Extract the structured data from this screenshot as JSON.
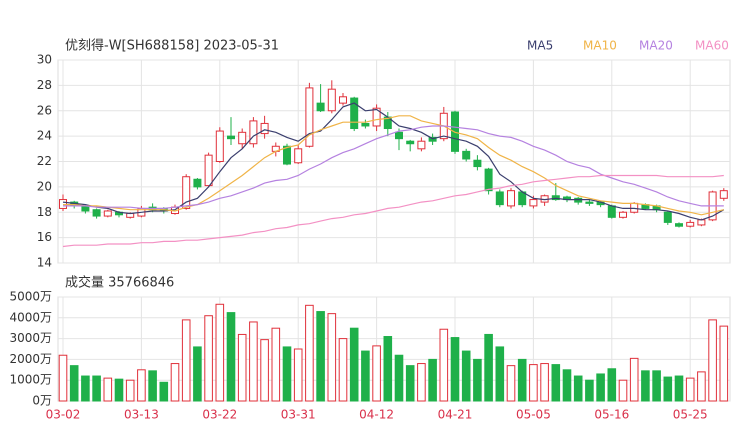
{
  "chart_data": [
    {
      "type": "candlestick",
      "title": "优刻得-W[SH688158] 2023-05-31",
      "categories": [
        "03-02",
        null,
        null,
        null,
        null,
        null,
        null,
        "03-13",
        null,
        null,
        null,
        null,
        null,
        null,
        "03-22",
        null,
        null,
        null,
        null,
        null,
        null,
        "03-31",
        null,
        null,
        null,
        null,
        null,
        null,
        "04-12",
        null,
        null,
        null,
        null,
        null,
        null,
        "04-21",
        null,
        null,
        null,
        null,
        null,
        null,
        "05-05",
        null,
        null,
        null,
        null,
        null,
        null,
        "05-16",
        null,
        null,
        null,
        null,
        null,
        null,
        "05-25",
        null,
        null,
        null
      ],
      "open": [
        18.3,
        18.8,
        18.5,
        18.2,
        17.7,
        18.0,
        17.6,
        17.7,
        18.4,
        18.3,
        17.9,
        18.3,
        20.6,
        20.1,
        22.0,
        24.0,
        23.4,
        23.4,
        24.2,
        22.8,
        23.2,
        21.9,
        23.2,
        26.6,
        26.0,
        26.6,
        27.0,
        25.0,
        24.8,
        25.5,
        24.3,
        23.6,
        23.0,
        23.9,
        23.8,
        25.9,
        22.8,
        22.1,
        21.4,
        19.6,
        18.5,
        19.6,
        18.5,
        18.8,
        19.3,
        19.2,
        19.1,
        18.8,
        18.8,
        18.5,
        17.6,
        18.0,
        18.6,
        18.5,
        18.0,
        17.1,
        16.9,
        17.0,
        17.4,
        19.1
      ],
      "high": [
        19.4,
        18.9,
        18.6,
        18.3,
        18.2,
        18.1,
        18.0,
        18.5,
        18.7,
        18.4,
        18.6,
        21.0,
        20.7,
        22.7,
        24.7,
        25.5,
        24.6,
        25.5,
        25.6,
        23.5,
        23.4,
        23.3,
        28.2,
        28.1,
        28.4,
        27.4,
        27.1,
        25.3,
        26.5,
        25.9,
        24.6,
        23.7,
        23.9,
        24.2,
        26.3,
        26.0,
        23.0,
        22.5,
        21.5,
        19.8,
        19.9,
        19.7,
        19.3,
        19.4,
        20.3,
        19.3,
        19.2,
        19.0,
        18.9,
        18.6,
        18.1,
        18.8,
        18.7,
        18.6,
        18.1,
        17.2,
        17.4,
        17.5,
        19.7,
        19.9
      ],
      "low": [
        18.1,
        18.3,
        17.9,
        17.5,
        17.6,
        17.6,
        17.5,
        17.6,
        18.0,
        17.9,
        17.8,
        18.2,
        19.8,
        20.0,
        21.9,
        23.3,
        23.0,
        23.1,
        23.8,
        22.4,
        21.7,
        21.8,
        23.1,
        25.9,
        25.8,
        26.4,
        24.4,
        24.6,
        24.4,
        24.0,
        22.9,
        22.8,
        22.8,
        23.3,
        23.6,
        22.6,
        22.0,
        21.3,
        19.4,
        18.4,
        18.3,
        18.4,
        18.3,
        18.5,
        18.9,
        18.8,
        18.6,
        18.5,
        18.4,
        17.5,
        17.5,
        17.9,
        18.2,
        18.0,
        17.0,
        16.8,
        16.8,
        16.9,
        17.3,
        18.9
      ],
      "close": [
        19.0,
        18.5,
        18.1,
        17.7,
        18.1,
        17.8,
        17.9,
        18.3,
        18.2,
        18.1,
        18.4,
        20.8,
        20.0,
        22.5,
        24.4,
        23.8,
        24.3,
        25.2,
        25.0,
        23.2,
        21.8,
        23.0,
        27.8,
        26.0,
        27.7,
        27.1,
        24.6,
        24.8,
        26.2,
        24.6,
        23.8,
        23.4,
        23.6,
        23.6,
        25.8,
        22.8,
        22.2,
        21.6,
        19.7,
        18.6,
        19.7,
        18.6,
        19.0,
        19.3,
        19.0,
        19.0,
        18.8,
        18.7,
        18.6,
        17.6,
        18.0,
        18.7,
        18.3,
        18.2,
        17.2,
        16.9,
        17.2,
        17.4,
        19.6,
        19.7
      ],
      "up_color": "#e0303a",
      "down_color": "#1fb04a",
      "series": [
        {
          "name": "MA5",
          "color": "#3b3f6e",
          "values": [
            18.8,
            18.7,
            18.6,
            18.4,
            18.3,
            18.0,
            17.9,
            18.0,
            18.1,
            18.1,
            18.2,
            18.8,
            19.1,
            20.0,
            21.2,
            22.3,
            23.0,
            24.0,
            24.5,
            24.3,
            23.9,
            23.6,
            24.2,
            24.4,
            25.3,
            26.3,
            26.6,
            26.0,
            26.1,
            25.5,
            24.8,
            24.6,
            24.3,
            23.8,
            24.0,
            23.8,
            23.6,
            23.2,
            22.4,
            21.0,
            20.4,
            19.6,
            19.1,
            19.0,
            19.1,
            19.0,
            19.0,
            19.0,
            18.8,
            18.5,
            18.3,
            18.3,
            18.2,
            18.2,
            18.1,
            17.9,
            17.6,
            17.4,
            17.7,
            18.2
          ]
        },
        {
          "name": "MA10",
          "color": "#f0b448",
          "values": [
            18.6,
            18.6,
            18.5,
            18.5,
            18.4,
            18.3,
            18.2,
            18.2,
            18.2,
            18.2,
            18.1,
            18.4,
            18.6,
            19.1,
            19.7,
            20.3,
            20.9,
            21.6,
            22.3,
            22.8,
            23.1,
            23.3,
            24.1,
            24.5,
            24.8,
            25.1,
            25.1,
            25.1,
            25.3,
            25.4,
            25.6,
            25.6,
            25.2,
            25.0,
            24.8,
            24.3,
            24.1,
            23.8,
            23.1,
            22.5,
            22.1,
            21.6,
            21.2,
            20.7,
            20.1,
            19.7,
            19.3,
            19.1,
            18.9,
            18.8,
            18.7,
            18.7,
            18.6,
            18.5,
            18.3,
            18.1,
            18.0,
            17.8,
            18.0,
            18.2
          ]
        },
        {
          "name": "MA20",
          "color": "#b582e0",
          "values": [
            18.5,
            18.5,
            18.5,
            18.4,
            18.4,
            18.4,
            18.4,
            18.3,
            18.3,
            18.3,
            18.4,
            18.5,
            18.6,
            18.8,
            19.1,
            19.3,
            19.6,
            19.9,
            20.3,
            20.5,
            20.6,
            20.9,
            21.4,
            21.8,
            22.3,
            22.7,
            23.0,
            23.4,
            23.8,
            24.1,
            24.4,
            24.5,
            24.7,
            24.8,
            24.8,
            24.7,
            24.6,
            24.5,
            24.2,
            24.0,
            23.9,
            23.6,
            23.2,
            22.9,
            22.5,
            22.0,
            21.7,
            21.5,
            21.0,
            20.7,
            20.4,
            20.2,
            19.9,
            19.6,
            19.2,
            18.9,
            18.7,
            18.5,
            18.5,
            18.5
          ]
        },
        {
          "name": "MA60",
          "color": "#f391c4",
          "values": [
            15.3,
            15.4,
            15.4,
            15.4,
            15.5,
            15.5,
            15.5,
            15.6,
            15.6,
            15.7,
            15.7,
            15.8,
            15.8,
            15.9,
            16.0,
            16.1,
            16.2,
            16.4,
            16.5,
            16.7,
            16.8,
            17.0,
            17.1,
            17.3,
            17.5,
            17.6,
            17.8,
            17.9,
            18.1,
            18.3,
            18.4,
            18.6,
            18.8,
            18.9,
            19.1,
            19.3,
            19.4,
            19.6,
            19.8,
            19.9,
            20.1,
            20.2,
            20.4,
            20.5,
            20.6,
            20.7,
            20.8,
            20.8,
            20.9,
            20.9,
            20.9,
            20.9,
            20.9,
            20.9,
            20.8,
            20.8,
            20.8,
            20.8,
            20.8,
            20.9
          ]
        }
      ],
      "ylim": [
        14,
        30
      ],
      "yticks": [
        14,
        16,
        18,
        20,
        22,
        24,
        26,
        28,
        30
      ],
      "grid": true
    },
    {
      "type": "bar",
      "title": "成交量 35766846",
      "values": [
        2200,
        1700,
        1200,
        1200,
        1100,
        1050,
        1000,
        1500,
        1450,
        900,
        1800,
        3900,
        2600,
        4100,
        4650,
        4250,
        3200,
        3800,
        2950,
        3500,
        2600,
        2500,
        4600,
        4300,
        4200,
        3000,
        3500,
        2400,
        2650,
        3100,
        2200,
        1700,
        1800,
        2000,
        3450,
        3050,
        2400,
        2000,
        3200,
        2600,
        1700,
        2000,
        1750,
        1800,
        1750,
        1500,
        1200,
        1000,
        1300,
        1550,
        1000,
        2050,
        1450,
        1450,
        1150,
        1200,
        1100,
        1400,
        3900,
        3600
      ],
      "ylim": [
        0,
        5000
      ],
      "yticks": [
        {
          "value": 0,
          "label": "0万"
        },
        {
          "value": 1000,
          "label": "1000万"
        },
        {
          "value": 2000,
          "label": "2000万"
        },
        {
          "value": 3000,
          "label": "3000万"
        },
        {
          "value": 4000,
          "label": "4000万"
        },
        {
          "value": 5000,
          "label": "5000万"
        }
      ],
      "grid": true
    }
  ]
}
